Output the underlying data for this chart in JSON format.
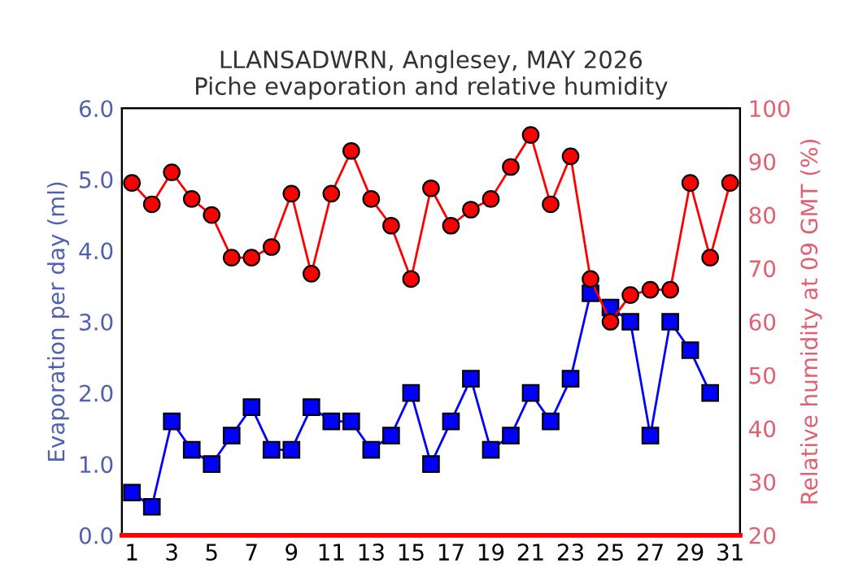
{
  "chart_data": {
    "type": "line",
    "title": "LLANSADWRN, Anglesey, MAY 2026\nPiche evaporation and relative humidity",
    "ylabel": "Evaporation per day (ml)",
    "y2label": "Relative humidity at 09 GMT (%)",
    "x": [
      1,
      2,
      3,
      4,
      5,
      6,
      7,
      8,
      9,
      10,
      11,
      12,
      13,
      14,
      15,
      16,
      17,
      18,
      19,
      20,
      21,
      22,
      23,
      24,
      25,
      26,
      27,
      28,
      29,
      30,
      31
    ],
    "xlim": [
      0.5,
      31.5
    ],
    "xticks": [
      1,
      3,
      5,
      7,
      9,
      11,
      13,
      15,
      17,
      19,
      21,
      23,
      25,
      27,
      29,
      31
    ],
    "ylim": [
      0,
      6
    ],
    "yticks": [
      {
        "value": 0,
        "label": "0.0"
      },
      {
        "value": 1,
        "label": "1.0"
      },
      {
        "value": 2,
        "label": "2.0"
      },
      {
        "value": 3,
        "label": "3.0"
      },
      {
        "value": 4,
        "label": "4.0"
      },
      {
        "value": 5,
        "label": "5.0"
      },
      {
        "value": 6,
        "label": "6.0"
      }
    ],
    "y2lim": [
      20,
      100
    ],
    "y2ticks": [
      20,
      30,
      40,
      50,
      60,
      70,
      80,
      90,
      100
    ],
    "grid": false,
    "legend": false,
    "series": [
      {
        "color": "#0000ff",
        "marker": "square",
        "values": [
          0.6,
          0.4,
          1.6,
          1.2,
          1.0,
          1.4,
          1.8,
          1.2,
          1.2,
          1.8,
          1.6,
          1.6,
          1.2,
          1.4,
          2.0,
          1.0,
          1.6,
          2.2,
          1.2,
          1.4,
          2.0,
          1.6,
          2.2,
          3.4,
          3.2,
          3.0,
          1.4,
          3.0,
          2.6,
          2.0,
          null
        ]
      },
      {
        "color": "#ff0000",
        "marker": "circle",
        "axis": "y2",
        "values": [
          86,
          82,
          88,
          83,
          80,
          72,
          72,
          74,
          84,
          69,
          84,
          92,
          83,
          78,
          68,
          85,
          78,
          81,
          83,
          89,
          95,
          82,
          91,
          68,
          60,
          65,
          66,
          66,
          86,
          72,
          86
        ]
      }
    ]
  }
}
